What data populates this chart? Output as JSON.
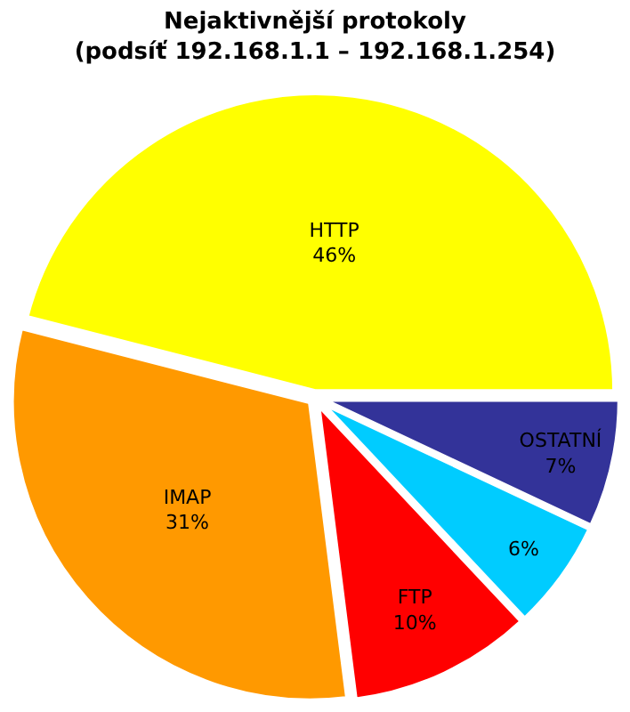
{
  "chart_data": {
    "type": "pie",
    "title": "Nejaktivnější protokoly\n(podsíť 192.168.1.1 – 192.168.1.254)",
    "categories": [
      "HTTP",
      "IMAP",
      "FTP",
      null,
      "OSTATNÍ"
    ],
    "values": [
      46,
      31,
      10,
      6,
      7
    ],
    "value_labels": [
      "46%",
      "31%",
      "10%",
      "6%",
      "7%"
    ],
    "colors": [
      "#ffff00",
      "#ff9900",
      "#ff0000",
      "#00ccff",
      "#333399"
    ],
    "legend": false
  }
}
